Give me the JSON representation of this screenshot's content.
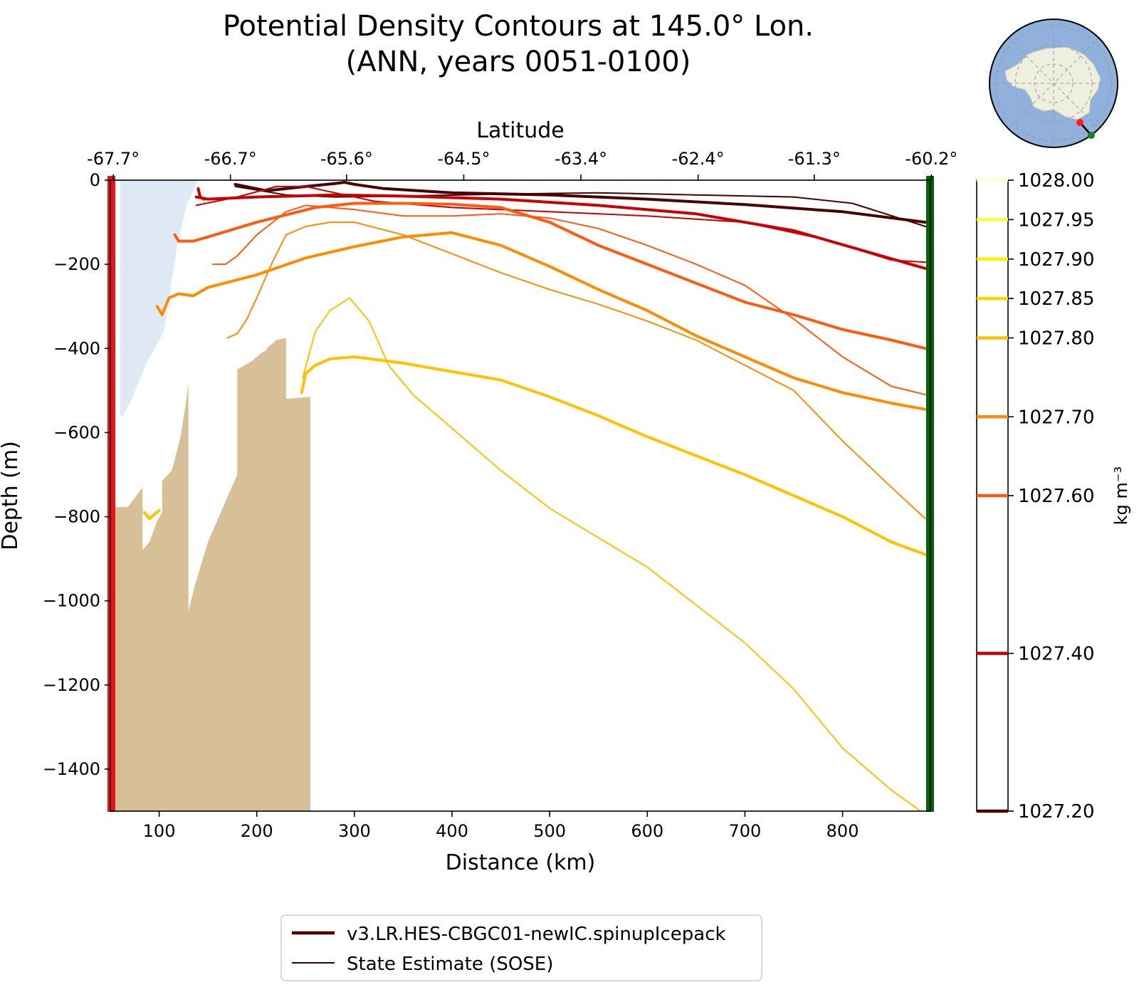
{
  "chart_data": {
    "type": "line",
    "title": "Potential Density Contours at 145.0° Lon.",
    "subtitle": "(ANN, years 0051-0100)",
    "xlabel": "Distance (km)",
    "ylabel": "Depth (m)",
    "top_axis_label": "Latitude",
    "xlim": [
      50,
      890
    ],
    "ylim": [
      -1500,
      0
    ],
    "x_ticks": [
      100,
      200,
      300,
      400,
      500,
      600,
      700,
      800
    ],
    "y_ticks": [
      0,
      -200,
      -400,
      -600,
      -800,
      -1000,
      -1200,
      -1400
    ],
    "y_tick_labels": [
      "0",
      "−200",
      "−400",
      "−600",
      "−800",
      "−1000",
      "−1200",
      "−1400"
    ],
    "top_ticks": [
      {
        "distance": 53,
        "label": "-67.7°"
      },
      {
        "distance": 173,
        "label": "-66.7°"
      },
      {
        "distance": 292,
        "label": "-65.6°"
      },
      {
        "distance": 412,
        "label": "-64.5°"
      },
      {
        "distance": 532,
        "label": "-63.4°"
      },
      {
        "distance": 652,
        "label": "-62.4°"
      },
      {
        "distance": 771,
        "label": "-61.3°"
      },
      {
        "distance": 891,
        "label": "-60.2°"
      }
    ],
    "grid": false,
    "legend_placement": "bottom-center",
    "legend": [
      {
        "label": "v3.LR.HES-CBGC01-newIC.spinupIcepack",
        "style": "thick"
      },
      {
        "label": "State Estimate (SOSE)",
        "style": "thin"
      }
    ],
    "section_start_marker_color": "#e8141b",
    "section_end_marker_color": "#006400",
    "colorbar": {
      "unit_label": "kg m⁻³",
      "vmin": 1027.2,
      "vmax": 1028.0,
      "ticks": [
        {
          "value": 1028.0,
          "label": "1028.00",
          "color": "#ffffcc"
        },
        {
          "value": 1027.95,
          "label": "1027.95",
          "color": "#ffff33"
        },
        {
          "value": 1027.9,
          "label": "1027.90",
          "color": "#ffee00"
        },
        {
          "value": 1027.85,
          "label": "1027.85",
          "color": "#ffd500"
        },
        {
          "value": 1027.8,
          "label": "1027.80",
          "color": "#ffc100"
        },
        {
          "value": 1027.7,
          "label": "1027.70",
          "color": "#ff8c00"
        },
        {
          "value": 1027.6,
          "label": "1027.60",
          "color": "#ff5a10"
        },
        {
          "value": 1027.4,
          "label": "1027.40",
          "color": "#cc0000"
        },
        {
          "value": 1027.2,
          "label": "1027.20",
          "color": "#4a0000"
        }
      ]
    },
    "shaded_regions": [
      {
        "name": "ice-shelf",
        "color": "#dfe9f6",
        "points": [
          [
            60,
            0
          ],
          [
            140,
            0
          ],
          [
            128,
            -60
          ],
          [
            118,
            -160
          ],
          [
            105,
            -360
          ],
          [
            88,
            -430
          ],
          [
            72,
            -520
          ],
          [
            63,
            -560
          ],
          [
            60,
            -560
          ]
        ]
      },
      {
        "name": "seafloor-bathymetry",
        "color": "#d7c098",
        "points": [
          [
            55,
            -1500
          ],
          [
            55,
            -777
          ],
          [
            68,
            -777
          ],
          [
            80,
            -740
          ],
          [
            83,
            -730
          ],
          [
            83,
            -880
          ],
          [
            90,
            -860
          ],
          [
            98,
            -810
          ],
          [
            103,
            -790
          ],
          [
            103,
            -715
          ],
          [
            113,
            -690
          ],
          [
            122,
            -610
          ],
          [
            128,
            -520
          ],
          [
            130,
            -482
          ],
          [
            130,
            -1025
          ],
          [
            137,
            -960
          ],
          [
            150,
            -860
          ],
          [
            165,
            -780
          ],
          [
            180,
            -700
          ],
          [
            180,
            -450
          ],
          [
            195,
            -430
          ],
          [
            205,
            -410
          ],
          [
            210,
            -405
          ],
          [
            210,
            -400
          ],
          [
            220,
            -380
          ],
          [
            230,
            -375
          ],
          [
            230,
            -520
          ],
          [
            255,
            -515
          ],
          [
            255,
            -1500
          ]
        ]
      }
    ],
    "series": [
      {
        "name": "v3.LR.HES-CBGC01-newIC.spinupIcepack",
        "value": 1027.2,
        "color": "#4a0000",
        "width": 4,
        "x": [
          178,
          210,
          250,
          280,
          290,
          300,
          330,
          400,
          500,
          600,
          700,
          800,
          885
        ],
        "y": [
          -10,
          -25,
          -15,
          -8,
          -5,
          -10,
          -20,
          -30,
          -35,
          -45,
          -58,
          -75,
          -100
        ]
      },
      {
        "name": "State Estimate (SOSE)",
        "value": 1027.2,
        "color": "#4a0000",
        "width": 2,
        "x": [
          178,
          230,
          280,
          350,
          450,
          550,
          650,
          750,
          810,
          885
        ],
        "y": [
          -15,
          -35,
          -40,
          -38,
          -33,
          -30,
          -35,
          -40,
          -55,
          -110
        ]
      },
      {
        "name": "v3.LR.HES-CBGC01-newIC.spinupIcepack",
        "value": 1027.4,
        "color": "#cc0000",
        "width": 4,
        "x": [
          138,
          150,
          200,
          280,
          350,
          450,
          550,
          650,
          750,
          885
        ],
        "y": [
          -40,
          -45,
          -40,
          -35,
          -38,
          -45,
          -60,
          -80,
          -120,
          -210
        ]
      },
      {
        "name": "State Estimate (SOSE)",
        "value": 1027.4,
        "color": "#cc0000",
        "width": 2,
        "x": [
          138,
          180,
          220,
          250,
          280,
          320,
          400,
          500,
          600,
          700,
          780,
          850,
          885
        ],
        "y": [
          -60,
          -40,
          -15,
          -15,
          -30,
          -50,
          -65,
          -75,
          -85,
          -100,
          -140,
          -190,
          -195
        ]
      },
      {
        "name": "v3.LR.HES-CBGC01-newIC.spinupIcepack",
        "value": 1027.4,
        "color": "#cc0000",
        "width": 4,
        "x": [
          140,
          142,
          146
        ],
        "y": [
          -20,
          -40,
          -45
        ]
      },
      {
        "name": "v3.LR.HES-CBGC01-newIC.spinupIcepack",
        "value": 1027.6,
        "color": "#ff5a10",
        "width": 4,
        "x": [
          116,
          120,
          135,
          150,
          200,
          260,
          300,
          350,
          400,
          450,
          500,
          550,
          600,
          650,
          700,
          750,
          800,
          850,
          885
        ],
        "y": [
          -130,
          -145,
          -145,
          -135,
          -100,
          -65,
          -55,
          -55,
          -57,
          -65,
          -100,
          -155,
          -200,
          -245,
          -290,
          -320,
          -355,
          -380,
          -400
        ]
      },
      {
        "name": "State Estimate (SOSE)",
        "value": 1027.6,
        "color": "#ff5a10",
        "width": 2,
        "x": [
          155,
          168,
          180,
          200,
          230,
          250,
          300,
          350,
          400,
          450,
          500,
          550,
          600,
          650,
          700,
          750,
          800,
          850,
          885
        ],
        "y": [
          -200,
          -200,
          -180,
          -130,
          -75,
          -60,
          -70,
          -85,
          -85,
          -80,
          -90,
          -115,
          -155,
          -200,
          -250,
          -330,
          -420,
          -490,
          -510
        ]
      },
      {
        "name": "v3.LR.HES-CBGC01-newIC.spinupIcepack",
        "value": 1027.7,
        "color": "#ff8c00",
        "width": 4,
        "x": [
          98,
          103,
          110,
          120,
          135,
          150,
          200,
          250,
          300,
          350,
          400,
          450,
          500,
          550,
          600,
          650,
          700,
          750,
          800,
          850,
          885
        ],
        "y": [
          -300,
          -320,
          -280,
          -270,
          -275,
          -255,
          -225,
          -185,
          -158,
          -135,
          -125,
          -155,
          -205,
          -260,
          -310,
          -370,
          -420,
          -470,
          -505,
          -530,
          -545
        ]
      },
      {
        "name": "State Estimate (SOSE)",
        "value": 1027.7,
        "color": "#ff8c00",
        "width": 2,
        "x": [
          170,
          180,
          190,
          200,
          215,
          230,
          250,
          275,
          300,
          350,
          400,
          450,
          500,
          550,
          600,
          650,
          700,
          750,
          800,
          850,
          885
        ],
        "y": [
          -375,
          -365,
          -330,
          -280,
          -200,
          -130,
          -110,
          -100,
          -100,
          -130,
          -175,
          -220,
          -260,
          -295,
          -335,
          -380,
          -440,
          -500,
          -620,
          -730,
          -805
        ]
      },
      {
        "name": "v3.LR.HES-CBGC01-newIC.spinupIcepack",
        "value": 1027.8,
        "color": "#ffc100",
        "width": 4,
        "x": [
          246,
          250,
          260,
          275,
          300,
          350,
          400,
          450,
          500,
          550,
          600,
          650,
          700,
          750,
          800,
          850,
          885
        ],
        "y": [
          -505,
          -460,
          -440,
          -425,
          -420,
          -435,
          -455,
          -475,
          -515,
          -560,
          -610,
          -655,
          -700,
          -750,
          -800,
          -860,
          -890
        ]
      },
      {
        "name": "v3.LR.HES-CBGC01-newIC.spinupIcepack",
        "value": 1027.8,
        "color": "#ffc100",
        "width": 4,
        "x": [
          85,
          90,
          95,
          100
        ],
        "y": [
          -790,
          -805,
          -795,
          -785
        ]
      },
      {
        "name": "State Estimate (SOSE)",
        "value": 1027.8,
        "color": "#ffc100",
        "width": 2,
        "x": [
          247,
          260,
          275,
          295,
          315,
          335,
          360,
          400,
          450,
          500,
          550,
          600,
          650,
          700,
          750,
          800,
          850,
          880
        ],
        "y": [
          -470,
          -360,
          -310,
          -280,
          -335,
          -440,
          -510,
          -590,
          -690,
          -780,
          -850,
          -920,
          -1010,
          -1100,
          -1210,
          -1350,
          -1450,
          -1500
        ]
      }
    ]
  },
  "inset_map": {
    "ocean_color": "#8fb1dc",
    "land_color": "#efefe0",
    "start_marker_color": "#ff1a1a",
    "end_marker_color": "#1a7f2a"
  }
}
